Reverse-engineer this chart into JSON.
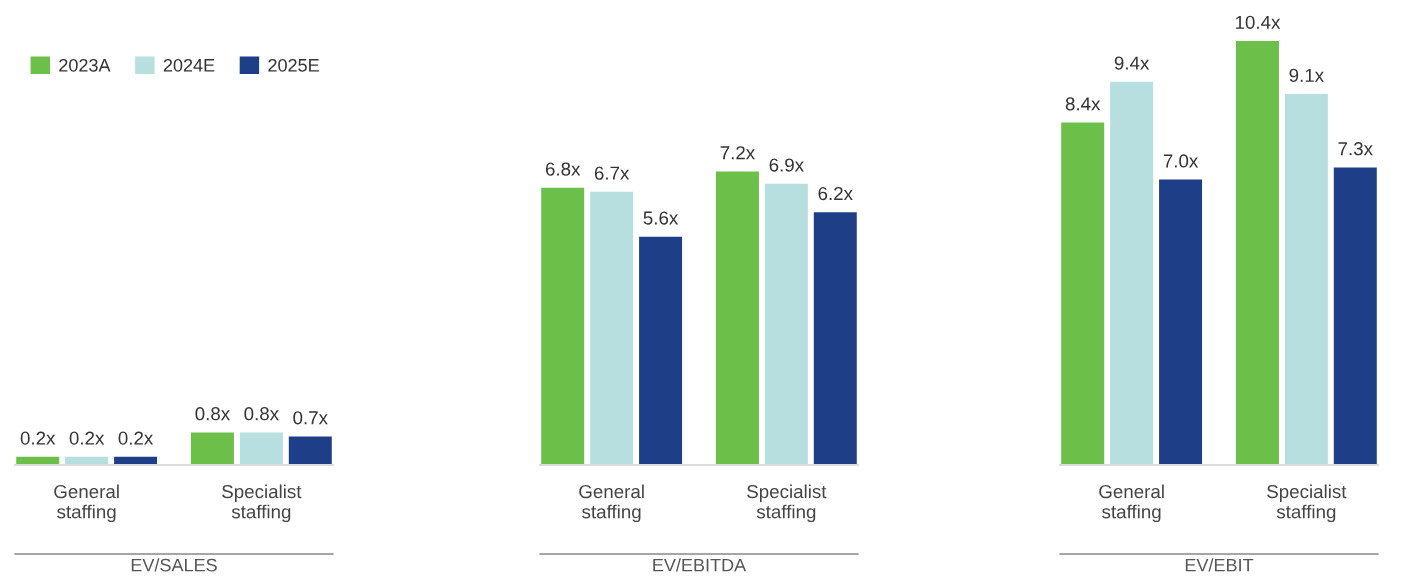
{
  "chart_data": [
    {
      "type": "bar",
      "xlabel": "EV/SALES",
      "categories": [
        "General\nstaffing",
        "Specialist\nstaffing"
      ],
      "legend": "top left",
      "series": [
        {
          "name": "2023A",
          "color": "#6cc04a",
          "values": [
            0.2,
            0.8
          ],
          "value_labels": [
            "0.2x",
            "0.8x"
          ]
        },
        {
          "name": "2024E",
          "color": "#b7dfe0",
          "values": [
            0.2,
            0.8
          ],
          "value_labels": [
            "0.2x",
            "0.8x"
          ]
        },
        {
          "name": "2025E",
          "color": "#1e3f87",
          "values": [
            0.2,
            0.7
          ],
          "value_labels": [
            "0.2x",
            "0.7x"
          ]
        }
      ]
    },
    {
      "type": "bar",
      "xlabel": "EV/EBITDA",
      "categories": [
        "General\nstaffing",
        "Specialist\nstaffing"
      ],
      "series": [
        {
          "color": "#6cc04a",
          "values": [
            6.8,
            7.2
          ],
          "value_labels": [
            "6.8x",
            "7.2x"
          ]
        },
        {
          "color": "#b7dfe0",
          "values": [
            6.7,
            6.9
          ],
          "value_labels": [
            "6.7x",
            "6.9x"
          ]
        },
        {
          "color": "#1e3f87",
          "values": [
            5.6,
            6.2
          ],
          "value_labels": [
            "5.6x",
            "6.2x"
          ]
        }
      ]
    },
    {
      "type": "bar",
      "xlabel": "EV/EBIT",
      "categories": [
        "General\nstaffing",
        "Specialist\nstaffing"
      ],
      "series": [
        {
          "color": "#6cc04a",
          "values": [
            8.4,
            10.4
          ],
          "value_labels": [
            "8.4x",
            "10.4x"
          ]
        },
        {
          "color": "#b7dfe0",
          "values": [
            9.4,
            9.1
          ],
          "value_labels": [
            "9.4x",
            "9.1x"
          ]
        },
        {
          "color": "#1e3f87",
          "values": [
            7.0,
            7.3
          ],
          "value_labels": [
            "7.0x",
            "7.3x"
          ]
        }
      ]
    }
  ]
}
